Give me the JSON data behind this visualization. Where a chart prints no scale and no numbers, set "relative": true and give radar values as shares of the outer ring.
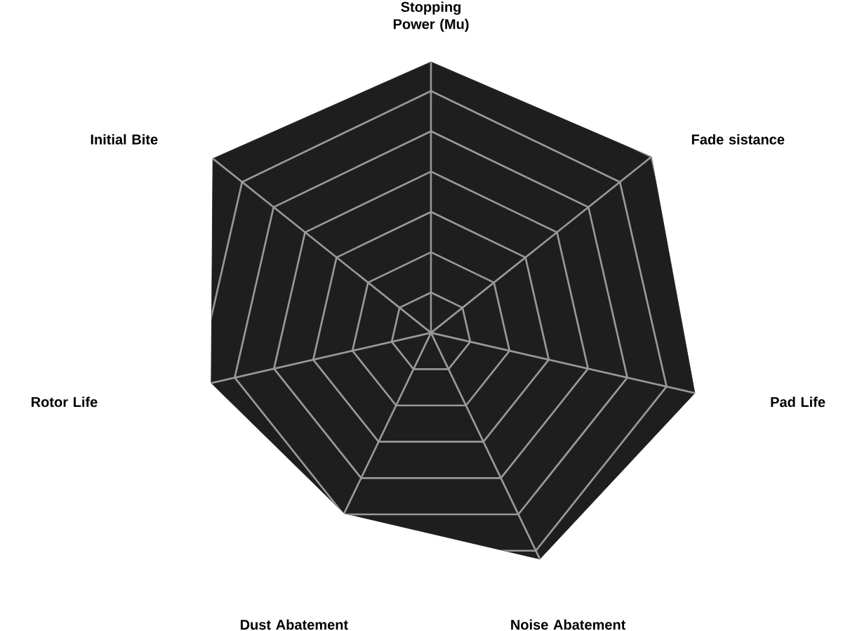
{
  "chart_data": {
    "type": "radar",
    "relative": true,
    "grid": true,
    "categories": [
      "Stopping Power (Mu)",
      "Fade sistance",
      "Pad Life",
      "Noise Abatement",
      "Dust Abatement",
      "Rotor Life",
      "Initial Bite"
    ],
    "series": [
      {
        "color": "#1e1e1e",
        "values": [
          0.96,
          1.0,
          0.96,
          0.89,
          0.71,
          0.8,
          0.99
        ]
      }
    ]
  }
}
